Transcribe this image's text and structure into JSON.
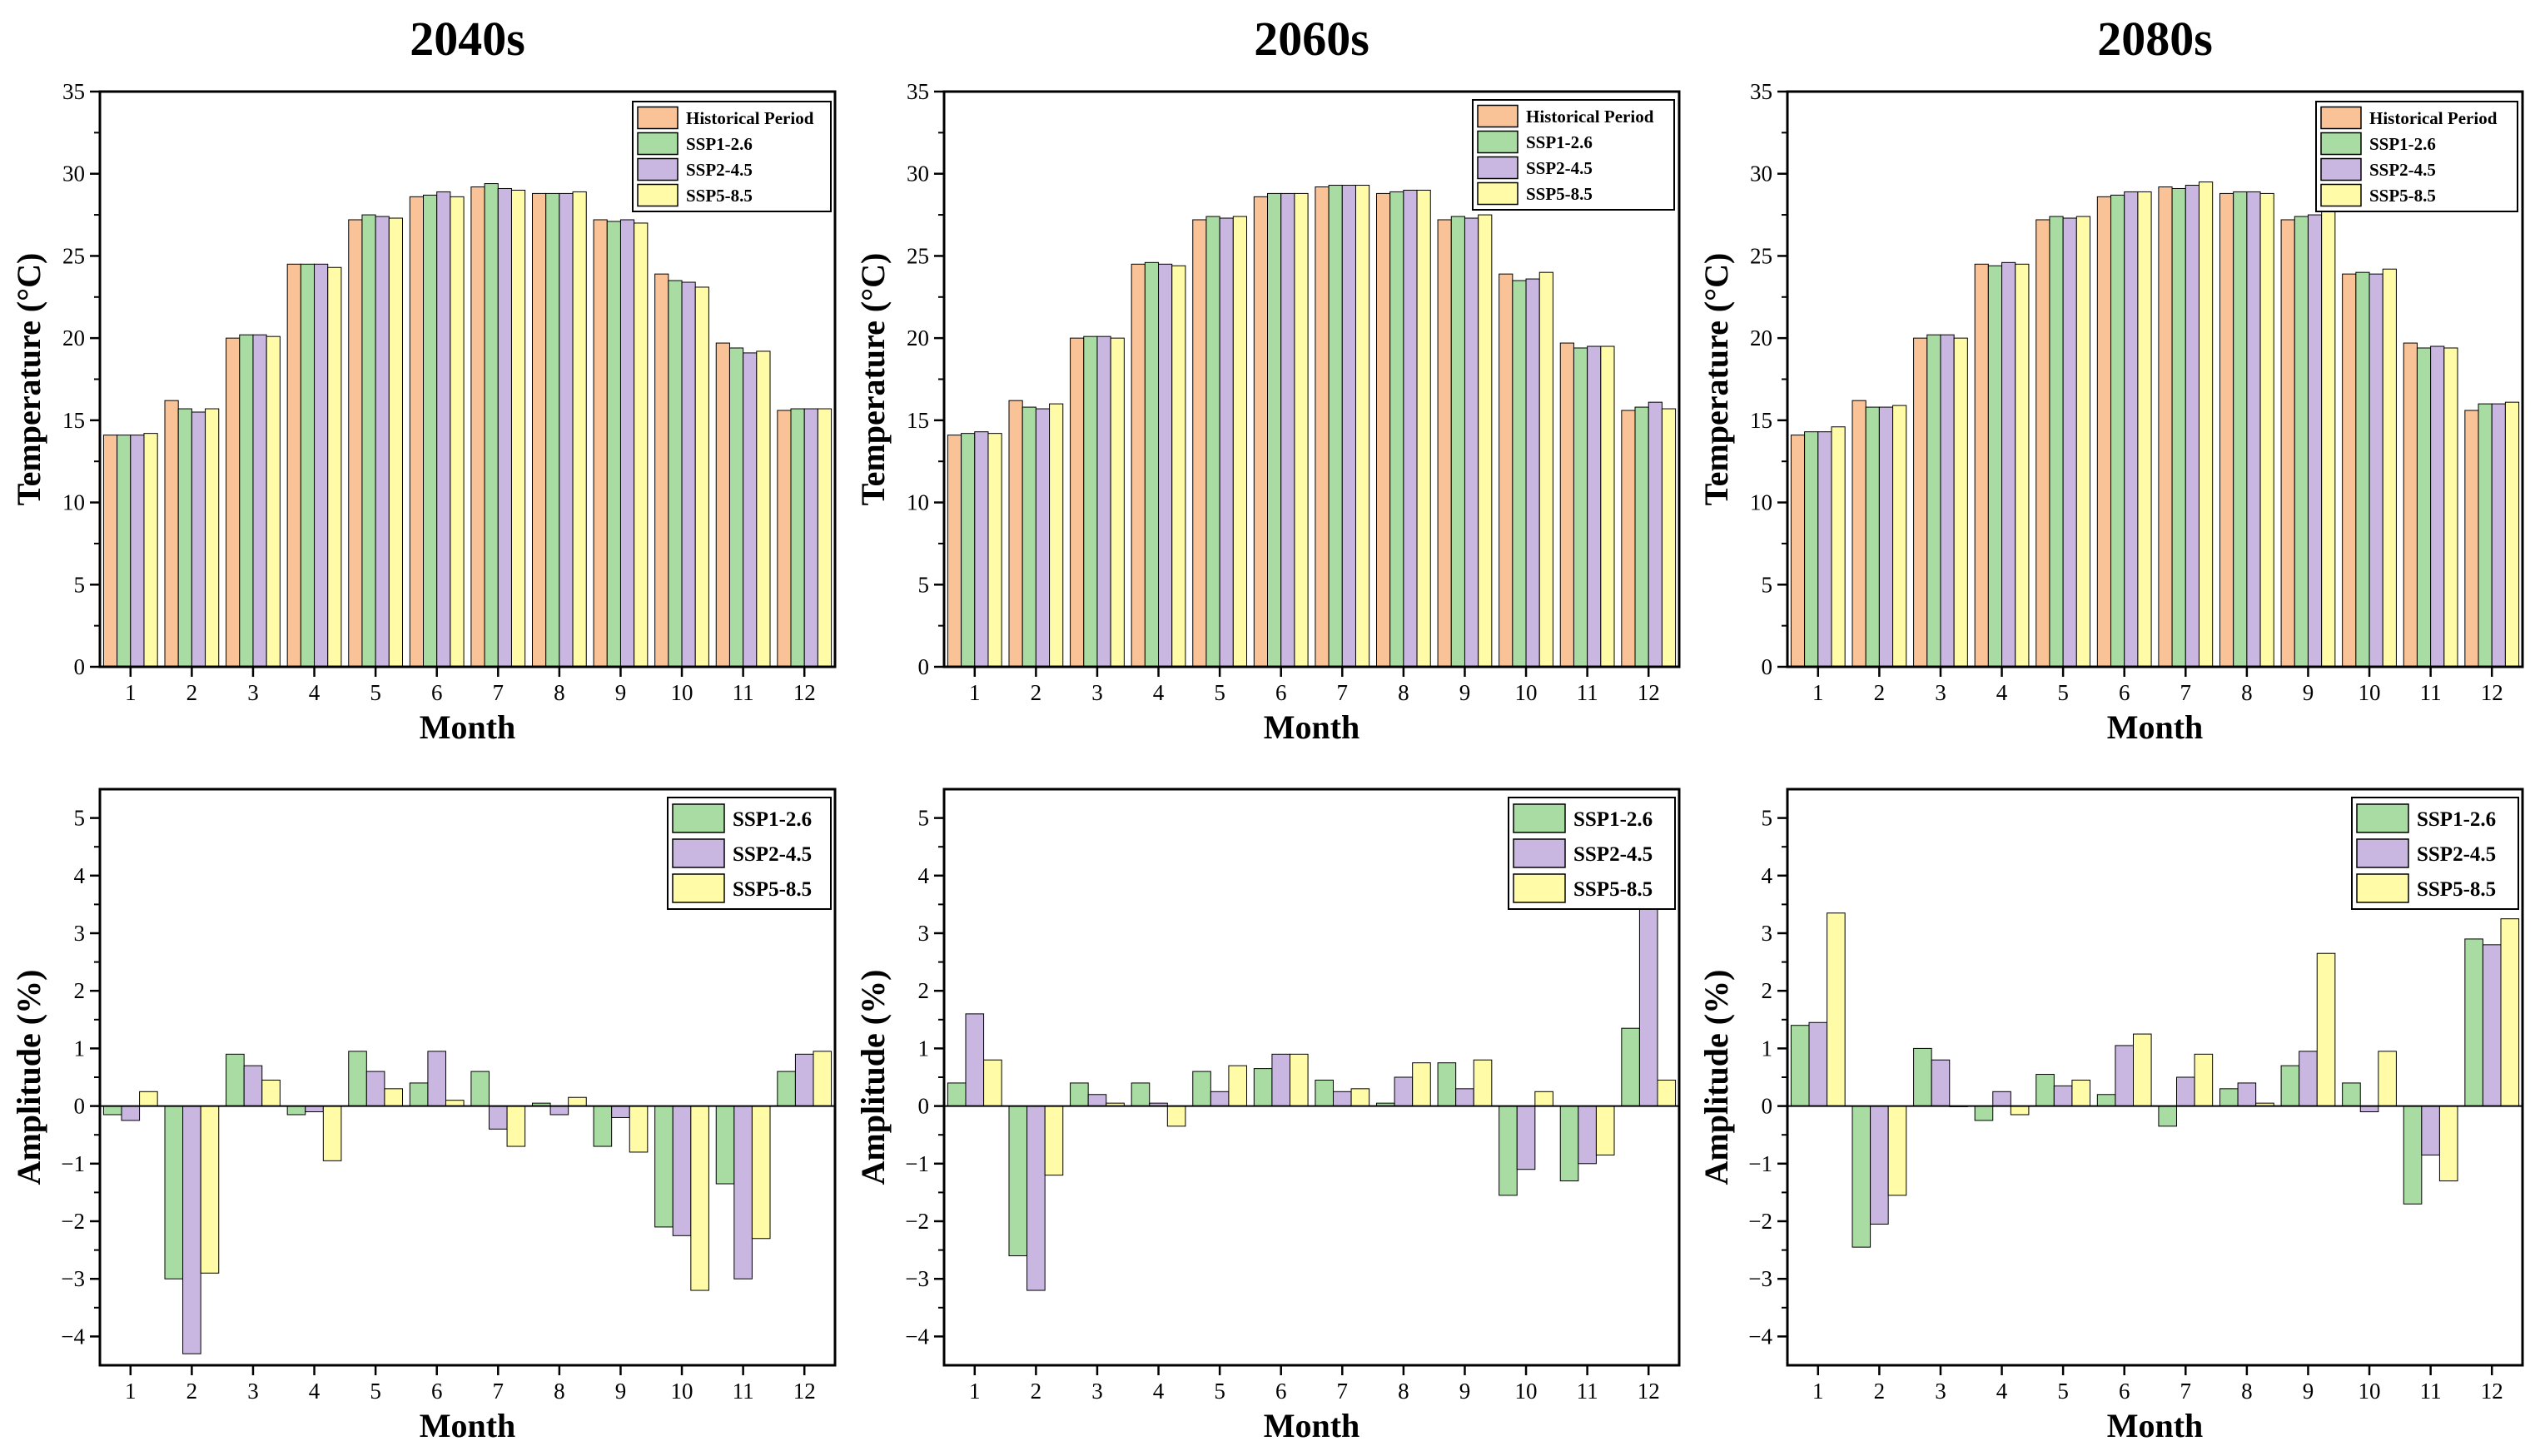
{
  "colors": {
    "hist": "#F9C397",
    "ssp126": "#A9DCA2",
    "ssp245": "#C9B7E2",
    "ssp585": "#FFFBA6",
    "axis": "#000000"
  },
  "chart_data": [
    {
      "type": "bar",
      "title": "2040s",
      "xlabel": "Month",
      "ylabel": "Temperature (°C)",
      "ylim": [
        0,
        35
      ],
      "yticks": [
        0,
        5,
        10,
        15,
        20,
        25,
        30,
        35
      ],
      "grid": false,
      "legend_position": "top-right",
      "categories": [
        "1",
        "2",
        "3",
        "4",
        "5",
        "6",
        "7",
        "8",
        "9",
        "10",
        "11",
        "12"
      ],
      "series": [
        {
          "name": "Historical Period",
          "color_key": "hist",
          "values": [
            14.1,
            16.2,
            20.0,
            24.5,
            27.2,
            28.6,
            29.2,
            28.8,
            27.2,
            23.9,
            19.7,
            15.6
          ]
        },
        {
          "name": "SSP1-2.6",
          "color_key": "ssp126",
          "values": [
            14.1,
            15.7,
            20.2,
            24.5,
            27.5,
            28.7,
            29.4,
            28.8,
            27.1,
            23.5,
            19.4,
            15.7
          ]
        },
        {
          "name": "SSP2-4.5",
          "color_key": "ssp245",
          "values": [
            14.1,
            15.5,
            20.2,
            24.5,
            27.4,
            28.9,
            29.1,
            28.8,
            27.2,
            23.4,
            19.1,
            15.7
          ]
        },
        {
          "name": "SSP5-8.5",
          "color_key": "ssp585",
          "values": [
            14.2,
            15.7,
            20.1,
            24.3,
            27.3,
            28.6,
            29.0,
            28.9,
            27.0,
            23.1,
            19.2,
            15.7
          ]
        }
      ]
    },
    {
      "type": "bar",
      "title": "2060s",
      "xlabel": "Month",
      "ylabel": "Temperature (°C)",
      "ylim": [
        0,
        35
      ],
      "yticks": [
        0,
        5,
        10,
        15,
        20,
        25,
        30,
        35
      ],
      "grid": false,
      "legend_position": "top-right",
      "categories": [
        "1",
        "2",
        "3",
        "4",
        "5",
        "6",
        "7",
        "8",
        "9",
        "10",
        "11",
        "12"
      ],
      "series": [
        {
          "name": "Historical Period",
          "color_key": "hist",
          "values": [
            14.1,
            16.2,
            20.0,
            24.5,
            27.2,
            28.6,
            29.2,
            28.8,
            27.2,
            23.9,
            19.7,
            15.6
          ]
        },
        {
          "name": "SSP1-2.6",
          "color_key": "ssp126",
          "values": [
            14.2,
            15.8,
            20.1,
            24.6,
            27.4,
            28.8,
            29.3,
            28.9,
            27.4,
            23.5,
            19.4,
            15.8
          ]
        },
        {
          "name": "SSP2-4.5",
          "color_key": "ssp245",
          "values": [
            14.3,
            15.7,
            20.1,
            24.5,
            27.3,
            28.8,
            29.3,
            29.0,
            27.3,
            23.6,
            19.5,
            16.1
          ]
        },
        {
          "name": "SSP5-8.5",
          "color_key": "ssp585",
          "values": [
            14.2,
            16.0,
            20.0,
            24.4,
            27.4,
            28.8,
            29.3,
            29.0,
            27.5,
            24.0,
            19.5,
            15.7
          ]
        }
      ]
    },
    {
      "type": "bar",
      "title": "2080s",
      "xlabel": "Month",
      "ylabel": "Temperature (°C)",
      "ylim": [
        0,
        35
      ],
      "yticks": [
        0,
        5,
        10,
        15,
        20,
        25,
        30,
        35
      ],
      "grid": false,
      "legend_position": "top-right",
      "categories": [
        "1",
        "2",
        "3",
        "4",
        "5",
        "6",
        "7",
        "8",
        "9",
        "10",
        "11",
        "12"
      ],
      "series": [
        {
          "name": "Historical Period",
          "color_key": "hist",
          "values": [
            14.1,
            16.2,
            20.0,
            24.5,
            27.2,
            28.6,
            29.2,
            28.8,
            27.2,
            23.9,
            19.7,
            15.6
          ]
        },
        {
          "name": "SSP1-2.6",
          "color_key": "ssp126",
          "values": [
            14.3,
            15.8,
            20.2,
            24.4,
            27.4,
            28.7,
            29.1,
            28.9,
            27.4,
            24.0,
            19.4,
            16.0
          ]
        },
        {
          "name": "SSP2-4.5",
          "color_key": "ssp245",
          "values": [
            14.3,
            15.8,
            20.2,
            24.6,
            27.3,
            28.9,
            29.3,
            28.9,
            27.5,
            23.9,
            19.5,
            16.0
          ]
        },
        {
          "name": "SSP5-8.5",
          "color_key": "ssp585",
          "values": [
            14.6,
            15.9,
            20.0,
            24.5,
            27.4,
            28.9,
            29.5,
            28.8,
            28.0,
            24.2,
            19.4,
            16.1
          ]
        }
      ]
    },
    {
      "type": "bar",
      "title": "",
      "xlabel": "Month",
      "ylabel": "Amplitude (%)",
      "ylim": [
        -4.5,
        5.5
      ],
      "yticks": [
        -4,
        -3,
        -2,
        -1,
        0,
        1,
        2,
        3,
        4,
        5
      ],
      "grid": false,
      "legend_position": "top-right",
      "categories": [
        "1",
        "2",
        "3",
        "4",
        "5",
        "6",
        "7",
        "8",
        "9",
        "10",
        "11",
        "12"
      ],
      "series": [
        {
          "name": "SSP1-2.6",
          "color_key": "ssp126",
          "values": [
            -0.15,
            -3.0,
            0.9,
            -0.15,
            0.95,
            0.4,
            0.6,
            0.05,
            -0.7,
            -2.1,
            -1.35,
            0.6
          ]
        },
        {
          "name": "SSP2-4.5",
          "color_key": "ssp245",
          "values": [
            -0.25,
            -4.3,
            0.7,
            -0.1,
            0.6,
            0.95,
            -0.4,
            -0.15,
            -0.2,
            -2.25,
            -3.0,
            0.9
          ]
        },
        {
          "name": "SSP5-8.5",
          "color_key": "ssp585",
          "values": [
            0.25,
            -2.9,
            0.45,
            -0.95,
            0.3,
            0.1,
            -0.7,
            0.15,
            -0.8,
            -3.2,
            -2.3,
            0.95
          ]
        }
      ]
    },
    {
      "type": "bar",
      "title": "",
      "xlabel": "Month",
      "ylabel": "Amplitude (%)",
      "ylim": [
        -4.5,
        5.5
      ],
      "yticks": [
        -4,
        -3,
        -2,
        -1,
        0,
        1,
        2,
        3,
        4,
        5
      ],
      "grid": false,
      "legend_position": "top-right",
      "categories": [
        "1",
        "2",
        "3",
        "4",
        "5",
        "6",
        "7",
        "8",
        "9",
        "10",
        "11",
        "12"
      ],
      "series": [
        {
          "name": "SSP1-2.6",
          "color_key": "ssp126",
          "values": [
            0.4,
            -2.6,
            0.4,
            0.4,
            0.6,
            0.65,
            0.45,
            0.05,
            0.75,
            -1.55,
            -1.3,
            1.35
          ]
        },
        {
          "name": "SSP2-4.5",
          "color_key": "ssp245",
          "values": [
            1.6,
            -3.2,
            0.2,
            0.05,
            0.25,
            0.9,
            0.25,
            0.5,
            0.3,
            -1.1,
            -1.0,
            3.45
          ]
        },
        {
          "name": "SSP5-8.5",
          "color_key": "ssp585",
          "values": [
            0.8,
            -1.2,
            0.05,
            -0.35,
            0.7,
            0.9,
            0.3,
            0.75,
            0.8,
            0.25,
            -0.85,
            0.45
          ]
        }
      ]
    },
    {
      "type": "bar",
      "title": "",
      "xlabel": "Month",
      "ylabel": "Amplitude (%)",
      "ylim": [
        -4.5,
        5.5
      ],
      "yticks": [
        -4,
        -3,
        -2,
        -1,
        0,
        1,
        2,
        3,
        4,
        5
      ],
      "grid": false,
      "legend_position": "top-right",
      "categories": [
        "1",
        "2",
        "3",
        "4",
        "5",
        "6",
        "7",
        "8",
        "9",
        "10",
        "11",
        "12"
      ],
      "series": [
        {
          "name": "SSP1-2.6",
          "color_key": "ssp126",
          "values": [
            1.4,
            -2.45,
            1.0,
            -0.25,
            0.55,
            0.2,
            -0.35,
            0.3,
            0.7,
            0.4,
            -1.7,
            2.9
          ]
        },
        {
          "name": "SSP2-4.5",
          "color_key": "ssp245",
          "values": [
            1.45,
            -2.05,
            0.8,
            0.25,
            0.35,
            1.05,
            0.5,
            0.4,
            0.95,
            -0.1,
            -0.85,
            2.8
          ]
        },
        {
          "name": "SSP5-8.5",
          "color_key": "ssp585",
          "values": [
            3.35,
            -1.55,
            0.0,
            -0.15,
            0.45,
            1.25,
            0.9,
            0.05,
            2.65,
            0.95,
            -1.3,
            3.25
          ]
        }
      ]
    }
  ]
}
